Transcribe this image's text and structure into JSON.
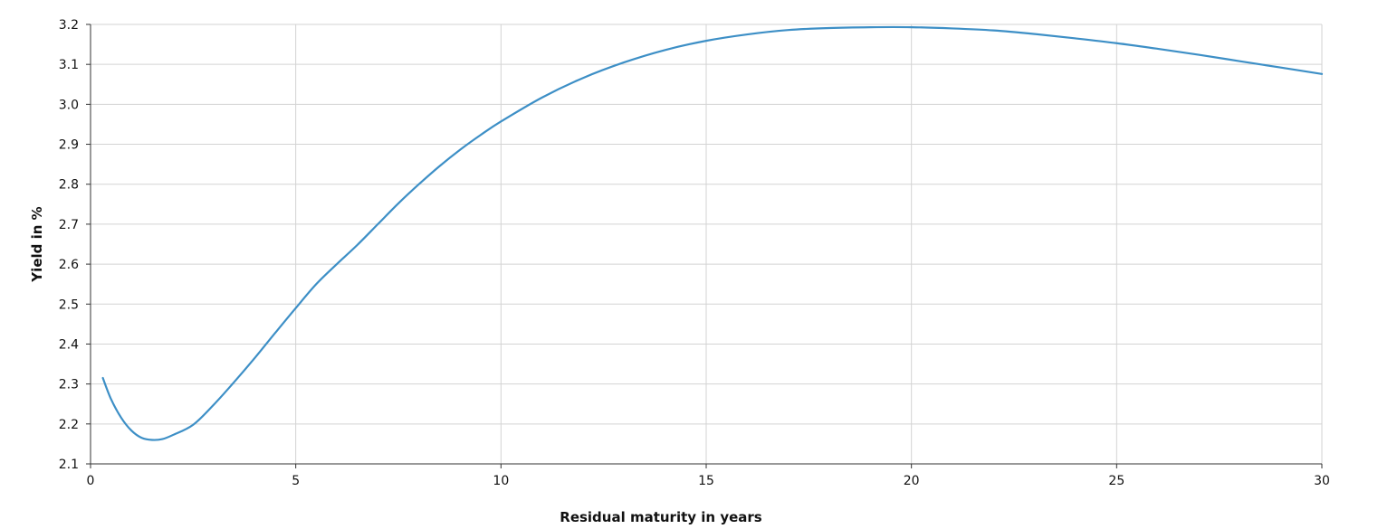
{
  "chart_data": {
    "type": "line",
    "title": "",
    "xlabel": "Residual maturity in years",
    "ylabel": "Yield in %",
    "xlim": [
      0,
      30
    ],
    "ylim": [
      2.1,
      3.2
    ],
    "xticks": [
      0,
      5,
      10,
      15,
      20,
      25,
      30
    ],
    "yticks": [
      2.1,
      2.2,
      2.3,
      2.4,
      2.5,
      2.6,
      2.7,
      2.8,
      2.9,
      3.0,
      3.1,
      3.2
    ],
    "xtick_labels": [
      "0",
      "5",
      "10",
      "15",
      "20",
      "25",
      "30"
    ],
    "ytick_labels": [
      "2.1",
      "2.2",
      "2.3",
      "2.4",
      "2.5",
      "2.6",
      "2.7",
      "2.8",
      "2.9",
      "3.0",
      "3.1",
      "3.2"
    ],
    "grid": true,
    "legend": "none",
    "series": [
      {
        "color": "#3d8fc6",
        "x": [
          0.3,
          0.5,
          0.75,
          1.0,
          1.25,
          1.5,
          1.75,
          2.0,
          2.5,
          3.0,
          3.5,
          4.0,
          4.5,
          5.0,
          5.5,
          6.0,
          6.5,
          7.0,
          7.5,
          8.0,
          8.5,
          9.0,
          9.5,
          10.0,
          11.0,
          12.0,
          13.0,
          14.0,
          15.0,
          16.0,
          17.0,
          18.0,
          19.0,
          20.0,
          21.0,
          22.0,
          23.0,
          24.0,
          25.0,
          26.0,
          27.0,
          28.0,
          29.0,
          30.0
        ],
        "y": [
          2.315,
          2.262,
          2.215,
          2.183,
          2.165,
          2.16,
          2.162,
          2.172,
          2.198,
          2.248,
          2.305,
          2.365,
          2.428,
          2.49,
          2.55,
          2.6,
          2.648,
          2.7,
          2.752,
          2.8,
          2.845,
          2.886,
          2.923,
          2.957,
          3.017,
          3.066,
          3.105,
          3.136,
          3.159,
          3.175,
          3.186,
          3.191,
          3.193,
          3.193,
          3.19,
          3.185,
          3.176,
          3.165,
          3.153,
          3.139,
          3.124,
          3.108,
          3.092,
          3.076
        ]
      }
    ]
  }
}
